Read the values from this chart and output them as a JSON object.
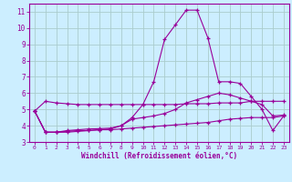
{
  "bg_color": "#cceeff",
  "grid_color": "#aacccc",
  "line_color": "#990099",
  "xlabel": "Windchill (Refroidissement éolien,°C)",
  "xlim": [
    -0.5,
    23.5
  ],
  "ylim": [
    3,
    11.5
  ],
  "yticks": [
    3,
    4,
    5,
    6,
    7,
    8,
    9,
    10,
    11
  ],
  "xticks": [
    0,
    1,
    2,
    3,
    4,
    5,
    6,
    7,
    8,
    9,
    10,
    11,
    12,
    13,
    14,
    15,
    16,
    17,
    18,
    19,
    20,
    21,
    22,
    23
  ],
  "series": [
    {
      "x": [
        0,
        1,
        2,
        3,
        4,
        5,
        6,
        7,
        8,
        9,
        10,
        11,
        12,
        13,
        14,
        15,
        16,
        17,
        18,
        19,
        20,
        21,
        22,
        23
      ],
      "y": [
        4.9,
        5.5,
        5.4,
        5.35,
        5.3,
        5.3,
        5.3,
        5.3,
        5.3,
        5.3,
        5.3,
        5.3,
        5.3,
        5.3,
        5.35,
        5.35,
        5.35,
        5.4,
        5.4,
        5.4,
        5.5,
        5.5,
        5.5,
        5.5
      ]
    },
    {
      "x": [
        0,
        1,
        2,
        3,
        4,
        5,
        6,
        7,
        8,
        9,
        10,
        11,
        12,
        13,
        14,
        15,
        16,
        17,
        18,
        19,
        20,
        21,
        22,
        23
      ],
      "y": [
        4.9,
        3.6,
        3.6,
        3.65,
        3.7,
        3.7,
        3.75,
        3.75,
        3.8,
        3.85,
        3.9,
        3.95,
        4.0,
        4.05,
        4.1,
        4.15,
        4.2,
        4.3,
        4.4,
        4.45,
        4.5,
        4.5,
        4.5,
        4.6
      ]
    },
    {
      "x": [
        0,
        1,
        2,
        3,
        4,
        5,
        6,
        7,
        8,
        9,
        10,
        11,
        12,
        13,
        14,
        15,
        16,
        17,
        18,
        19,
        20,
        21,
        22,
        23
      ],
      "y": [
        4.9,
        3.6,
        3.6,
        3.7,
        3.75,
        3.8,
        3.82,
        3.85,
        4.0,
        4.4,
        4.5,
        4.6,
        4.75,
        5.0,
        5.4,
        5.6,
        5.8,
        6.0,
        5.9,
        5.7,
        5.5,
        5.3,
        4.6,
        4.65
      ]
    },
    {
      "x": [
        0,
        1,
        2,
        3,
        4,
        5,
        6,
        7,
        8,
        9,
        10,
        11,
        12,
        13,
        14,
        15,
        16,
        17,
        18,
        19,
        20,
        21,
        22,
        23
      ],
      "y": [
        4.9,
        3.6,
        3.6,
        3.6,
        3.65,
        3.7,
        3.75,
        3.8,
        4.0,
        4.5,
        5.3,
        6.7,
        9.3,
        10.2,
        11.1,
        11.1,
        9.4,
        6.7,
        6.7,
        6.6,
        5.8,
        5.0,
        3.7,
        4.6
      ]
    }
  ]
}
